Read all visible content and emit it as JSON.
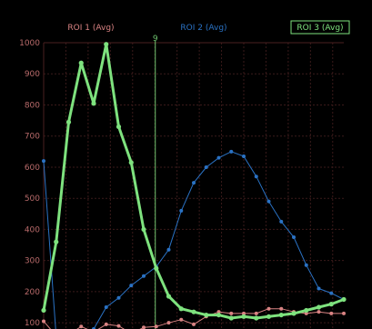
{
  "chart_data": {
    "type": "line",
    "ylim": [
      80,
      1000
    ],
    "yticks": [
      100,
      200,
      300,
      400,
      500,
      600,
      700,
      800,
      900,
      1000
    ],
    "ytick_labels": [
      "100",
      "200",
      "300",
      "400",
      "500",
      "600",
      "700",
      "800",
      "900",
      "1000"
    ],
    "cursor": {
      "label": "9",
      "x": 9
    },
    "grid": true,
    "series": [
      {
        "name": "ROI 1 (Avg)",
        "color": "#d98383",
        "x": [
          0,
          1,
          2,
          3,
          4,
          5,
          6,
          7,
          8,
          9,
          10,
          11,
          12,
          13,
          14,
          15,
          16,
          17,
          18,
          19,
          20,
          21,
          22,
          23,
          24
        ],
        "y": [
          105,
          58,
          62,
          88,
          70,
          95,
          90,
          65,
          85,
          88,
          100,
          110,
          95,
          120,
          135,
          130,
          130,
          130,
          145,
          145,
          135,
          130,
          135,
          130,
          130
        ]
      },
      {
        "name": "ROI 2 (Avg)",
        "color": "#2a72c4",
        "x": [
          0,
          1,
          2,
          3,
          4,
          5,
          6,
          7,
          8,
          9,
          10,
          11,
          12,
          13,
          14,
          15,
          16,
          17,
          18,
          19,
          20,
          21,
          22,
          23,
          24
        ],
        "y": [
          620,
          55,
          60,
          70,
          80,
          150,
          180,
          220,
          250,
          280,
          335,
          460,
          550,
          600,
          630,
          650,
          635,
          570,
          490,
          425,
          375,
          285,
          210,
          195,
          175
        ]
      },
      {
        "name": "ROI 3 (Avg)",
        "color": "#7ee27e",
        "x": [
          0,
          1,
          2,
          3,
          4,
          5,
          6,
          7,
          8,
          9,
          10,
          11,
          12,
          13,
          14,
          15,
          16,
          17,
          18,
          19,
          20,
          21,
          22,
          23,
          24
        ],
        "y": [
          140,
          360,
          745,
          935,
          805,
          995,
          730,
          615,
          400,
          275,
          185,
          145,
          135,
          125,
          125,
          115,
          120,
          115,
          120,
          125,
          130,
          140,
          150,
          160,
          175
        ]
      }
    ]
  }
}
